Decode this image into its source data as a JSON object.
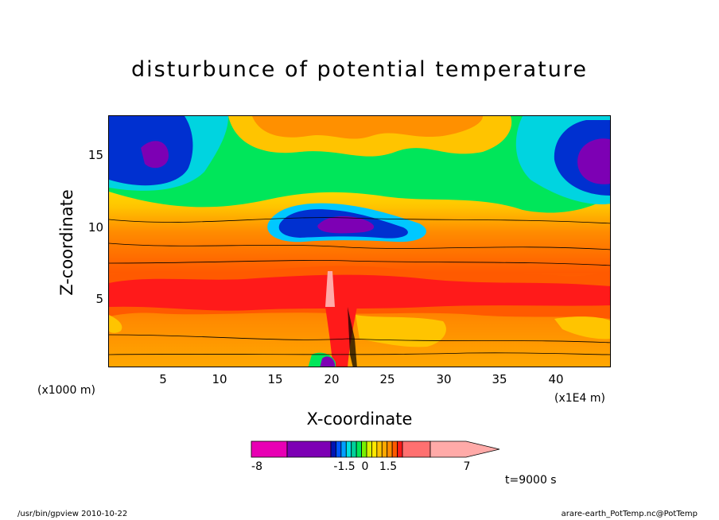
{
  "title": "disturbunce of potential temperature",
  "x_axis": {
    "label": "X-coordinate",
    "unit_left": "(x1000 m)",
    "unit_right": "(x1E4 m)",
    "ticks": [
      "5",
      "10",
      "15",
      "20",
      "25",
      "30",
      "35",
      "40"
    ]
  },
  "y_axis": {
    "label": "Z-coordinate",
    "ticks": [
      "5",
      "10",
      "15"
    ]
  },
  "colorbar": {
    "labels": [
      "-8",
      "-1.5",
      "0",
      "1.5",
      "7"
    ],
    "colors": [
      "#e800b4",
      "#7d00b4",
      "#0014b4",
      "#0055ff",
      "#00a0ff",
      "#00e0e0",
      "#00d09a",
      "#00e65a",
      "#78f000",
      "#d8f000",
      "#ffe800",
      "#ffc400",
      "#ffa800",
      "#ff8c00",
      "#ff5a00",
      "#ff1a1a",
      "#ff7070",
      "#ffaaa8"
    ]
  },
  "time_label": "t=9000 s",
  "footer_left": "/usr/bin/gpview  2010-10-22",
  "footer_right": "arare-earth_PotTemp.nc@PotTemp",
  "chart_data": {
    "type": "heatmap",
    "title": "disturbunce of potential temperature",
    "xlabel": "X-coordinate",
    "ylabel": "Z-coordinate",
    "x_unit": "x1E4 m",
    "z_unit": "x1000 m",
    "xlim": [
      0,
      45
    ],
    "ylim": [
      0,
      17.5
    ],
    "x_ticks": [
      5,
      10,
      15,
      20,
      25,
      30,
      35,
      40
    ],
    "y_ticks": [
      5,
      10,
      15
    ],
    "color_levels": [
      -8,
      -1.5,
      0,
      1.5,
      7
    ],
    "time": "t=9000 s",
    "grid": false
  }
}
